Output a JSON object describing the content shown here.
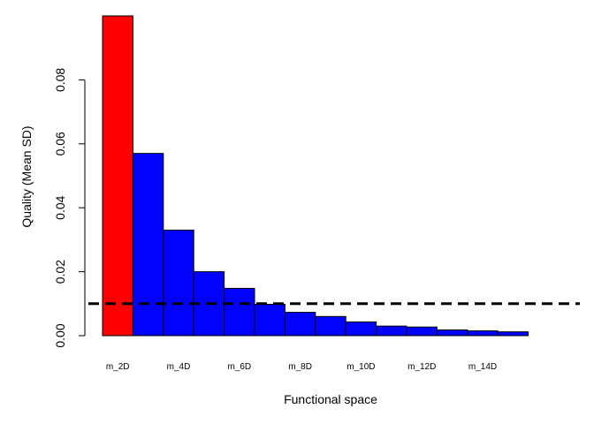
{
  "chart_data": {
    "type": "bar",
    "title": "",
    "xlabel": "Functional space",
    "ylabel": "Quality (Mean SD)",
    "categories": [
      "m_2D",
      "m_3D",
      "m_4D",
      "m_5D",
      "m_6D",
      "m_7D",
      "m_8D",
      "m_9D",
      "m_10D",
      "m_11D",
      "m_12D",
      "m_13D",
      "m_14D",
      "m_15D"
    ],
    "category_labels": [
      "m_2D",
      "",
      "m_4D",
      "",
      "m_6D",
      "",
      "m_8D",
      "",
      "m_10D",
      "",
      "m_12D",
      "",
      "m_14D",
      ""
    ],
    "values": [
      0.1,
      0.057,
      0.033,
      0.02,
      0.0148,
      0.0098,
      0.0073,
      0.006,
      0.0043,
      0.003,
      0.0027,
      0.0018,
      0.0015,
      0.0012
    ],
    "highlight_index": 0,
    "colors": {
      "highlight": "#ff0000",
      "bar": "#0000ff",
      "border": "#000000",
      "threshold": "#000000"
    },
    "threshold": {
      "value": 0.01,
      "style": "dashed"
    },
    "yticks": [
      0.0,
      0.02,
      0.04,
      0.06,
      0.08
    ],
    "ytick_labels": [
      "0.00",
      "0.02",
      "0.04",
      "0.06",
      "0.08"
    ],
    "ylim": [
      0,
      0.1
    ],
    "grid": false,
    "legend": "none"
  }
}
